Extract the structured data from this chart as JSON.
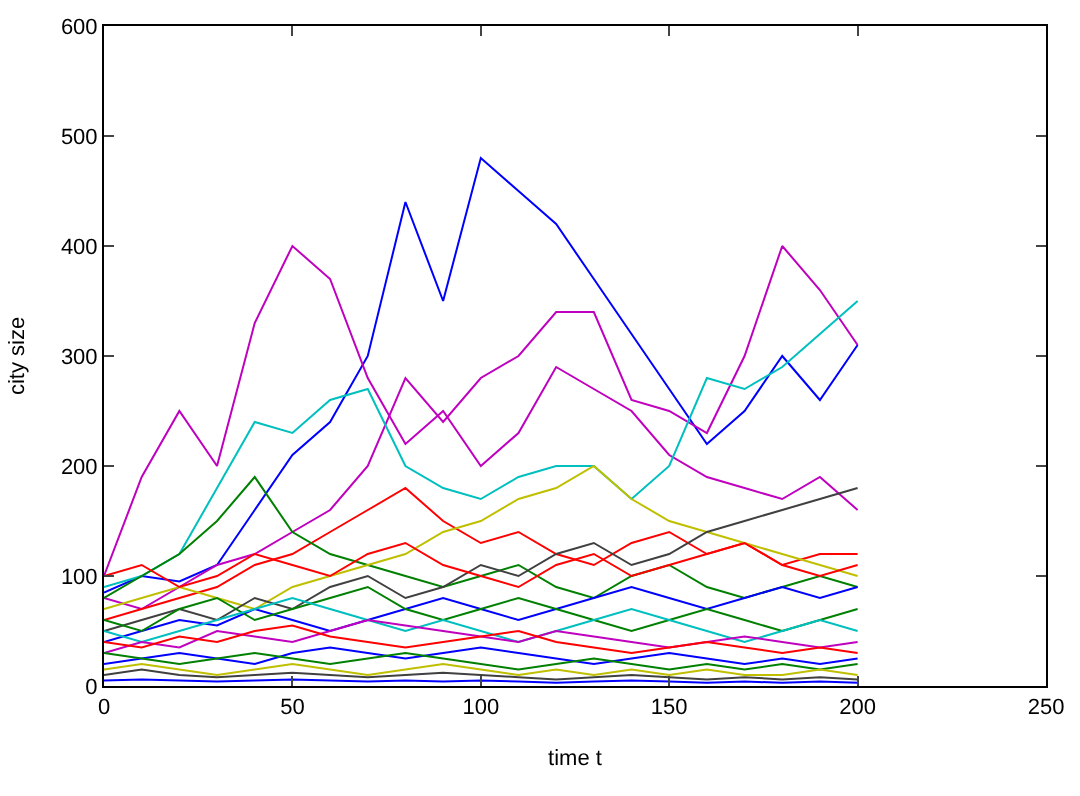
{
  "chart_data": {
    "type": "line",
    "xlabel": "time t",
    "ylabel": "city size",
    "xlim": [
      0,
      250
    ],
    "ylim": [
      0,
      600
    ],
    "xticks": [
      0,
      50,
      100,
      150,
      200,
      250
    ],
    "yticks": [
      0,
      100,
      200,
      300,
      400,
      500,
      600
    ],
    "marker": "none",
    "line_style": "solid",
    "x": [
      0,
      10,
      20,
      30,
      40,
      50,
      60,
      70,
      80,
      90,
      100,
      110,
      120,
      130,
      140,
      150,
      160,
      170,
      180,
      190,
      200
    ],
    "series": [
      {
        "color": "#0000ff",
        "values": [
          85,
          100,
          95,
          110,
          160,
          210,
          240,
          300,
          440,
          350,
          480,
          450,
          420,
          370,
          320,
          270,
          220,
          250,
          300,
          260,
          310
        ]
      },
      {
        "color": "#bf00bf",
        "values": [
          100,
          190,
          250,
          200,
          330,
          400,
          370,
          280,
          220,
          250,
          200,
          230,
          290,
          270,
          250,
          210,
          190,
          180,
          170,
          190,
          160
        ]
      },
      {
        "color": "#bf00bf",
        "values": [
          80,
          70,
          90,
          110,
          120,
          140,
          160,
          200,
          280,
          240,
          280,
          300,
          340,
          340,
          260,
          250,
          230,
          300,
          400,
          360,
          310
        ]
      },
      {
        "color": "#00bfbf",
        "values": [
          90,
          100,
          120,
          180,
          240,
          230,
          260,
          270,
          200,
          180,
          170,
          190,
          200,
          200,
          170,
          200,
          280,
          270,
          290,
          320,
          350
        ]
      },
      {
        "color": "#ff0000",
        "values": [
          60,
          70,
          80,
          90,
          110,
          120,
          140,
          160,
          180,
          150,
          130,
          140,
          120,
          110,
          130,
          140,
          120,
          130,
          110,
          120,
          120
        ]
      },
      {
        "color": "#008000",
        "values": [
          80,
          100,
          120,
          150,
          190,
          140,
          120,
          110,
          100,
          90,
          100,
          110,
          90,
          80,
          100,
          110,
          90,
          80,
          90,
          100,
          90
        ]
      },
      {
        "color": "#bfbf00",
        "values": [
          70,
          80,
          90,
          80,
          70,
          90,
          100,
          110,
          120,
          140,
          150,
          170,
          180,
          200,
          170,
          150,
          140,
          130,
          120,
          110,
          100
        ]
      },
      {
        "color": "#404040",
        "values": [
          50,
          60,
          70,
          60,
          80,
          70,
          90,
          100,
          80,
          90,
          110,
          100,
          120,
          130,
          110,
          120,
          140,
          150,
          160,
          170,
          180
        ]
      },
      {
        "color": "#ff0000",
        "values": [
          100,
          110,
          90,
          100,
          120,
          110,
          100,
          120,
          130,
          110,
          100,
          90,
          110,
          120,
          100,
          110,
          120,
          130,
          110,
          100,
          110
        ]
      },
      {
        "color": "#0000ff",
        "values": [
          40,
          50,
          60,
          55,
          70,
          60,
          50,
          60,
          70,
          80,
          70,
          60,
          70,
          80,
          90,
          80,
          70,
          80,
          90,
          80,
          90
        ]
      },
      {
        "color": "#008000",
        "values": [
          60,
          50,
          70,
          80,
          60,
          70,
          80,
          90,
          70,
          60,
          70,
          80,
          70,
          60,
          50,
          60,
          70,
          60,
          50,
          60,
          70
        ]
      },
      {
        "color": "#00bfbf",
        "values": [
          50,
          40,
          50,
          60,
          70,
          80,
          70,
          60,
          50,
          60,
          50,
          40,
          50,
          60,
          70,
          60,
          50,
          40,
          50,
          60,
          50
        ]
      },
      {
        "color": "#bf00bf",
        "values": [
          30,
          40,
          35,
          50,
          45,
          40,
          50,
          60,
          55,
          50,
          45,
          40,
          50,
          45,
          40,
          35,
          40,
          45,
          40,
          35,
          40
        ]
      },
      {
        "color": "#ff0000",
        "values": [
          40,
          35,
          45,
          40,
          50,
          55,
          45,
          40,
          35,
          40,
          45,
          50,
          40,
          35,
          30,
          35,
          40,
          35,
          30,
          35,
          30
        ]
      },
      {
        "color": "#0000ff",
        "values": [
          20,
          25,
          30,
          25,
          20,
          30,
          35,
          30,
          25,
          30,
          35,
          30,
          25,
          20,
          25,
          30,
          25,
          20,
          25,
          20,
          25
        ]
      },
      {
        "color": "#008000",
        "values": [
          30,
          25,
          20,
          25,
          30,
          25,
          20,
          25,
          30,
          25,
          20,
          15,
          20,
          25,
          20,
          15,
          20,
          15,
          20,
          15,
          20
        ]
      },
      {
        "color": "#bfbf00",
        "values": [
          15,
          20,
          15,
          10,
          15,
          20,
          15,
          10,
          15,
          20,
          15,
          10,
          15,
          10,
          15,
          10,
          15,
          10,
          10,
          15,
          10
        ]
      },
      {
        "color": "#404040",
        "values": [
          10,
          15,
          10,
          8,
          10,
          12,
          10,
          8,
          10,
          12,
          10,
          8,
          6,
          8,
          10,
          8,
          6,
          8,
          6,
          8,
          6
        ]
      },
      {
        "color": "#0000ff",
        "values": [
          5,
          6,
          5,
          4,
          5,
          6,
          5,
          4,
          5,
          4,
          5,
          4,
          3,
          4,
          5,
          4,
          3,
          4,
          3,
          4,
          3
        ]
      }
    ]
  }
}
